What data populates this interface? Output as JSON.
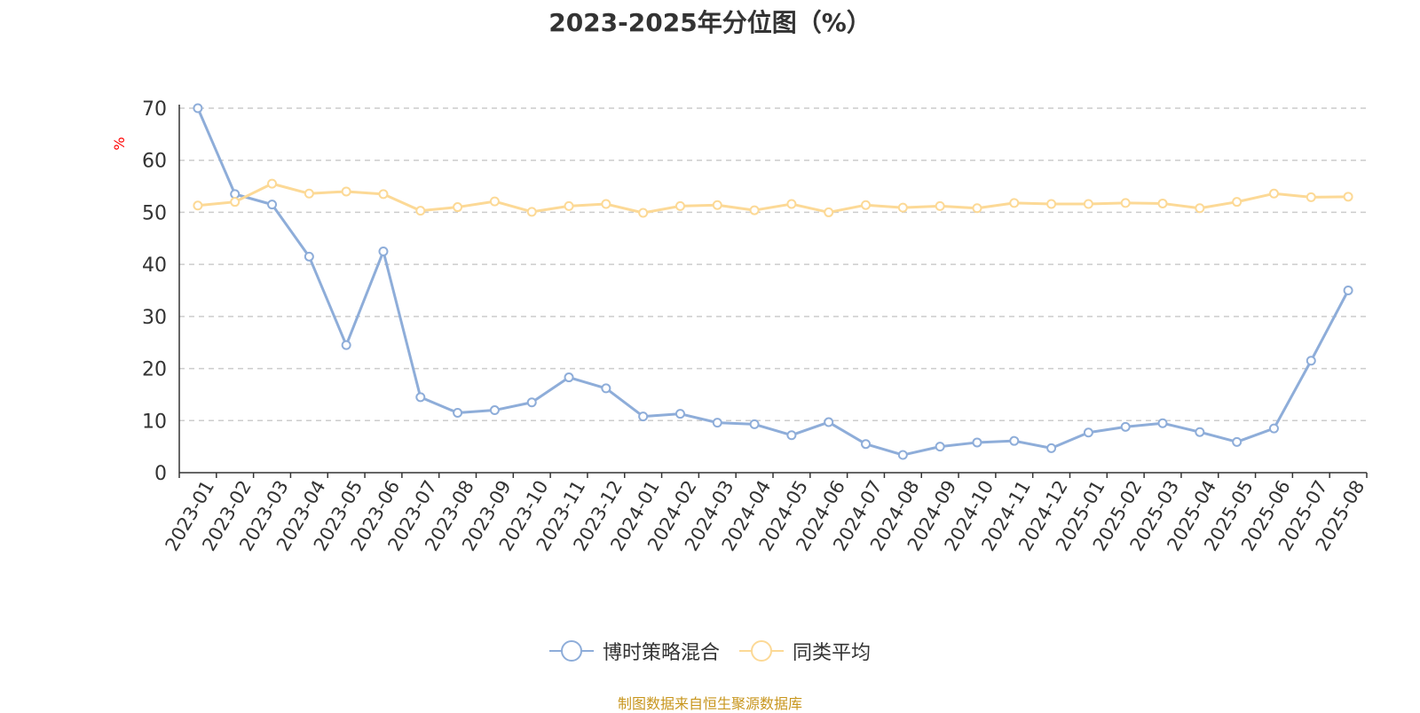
{
  "chart_data": {
    "type": "line",
    "title": "2023-2025年分位图（%）",
    "ylabel": "%",
    "xlabel": "",
    "ylim": [
      0,
      70
    ],
    "yticks": [
      0,
      10,
      20,
      30,
      40,
      50,
      60,
      70
    ],
    "grid": true,
    "legend_position": "bottom",
    "categories": [
      "2023-01",
      "2023-02",
      "2023-03",
      "2023-04",
      "2023-05",
      "2023-06",
      "2023-07",
      "2023-08",
      "2023-09",
      "2023-10",
      "2023-11",
      "2023-12",
      "2024-01",
      "2024-02",
      "2024-03",
      "2024-04",
      "2024-05",
      "2024-06",
      "2024-07",
      "2024-08",
      "2024-09",
      "2024-10",
      "2024-11",
      "2024-12",
      "2025-01",
      "2025-02",
      "2025-03",
      "2025-04",
      "2025-05",
      "2025-06",
      "2025-07",
      "2025-08"
    ],
    "series": [
      {
        "name": "博时策略混合",
        "color": "#8eadd9",
        "values": [
          70.0,
          53.5,
          51.5,
          41.5,
          24.5,
          42.5,
          14.5,
          11.5,
          12.0,
          13.5,
          18.3,
          16.2,
          10.8,
          11.3,
          9.6,
          9.3,
          7.2,
          9.7,
          5.5,
          3.4,
          5.0,
          5.8,
          6.1,
          4.7,
          7.7,
          8.8,
          9.5,
          7.8,
          5.9,
          8.5,
          21.5,
          35.0
        ]
      },
      {
        "name": "同类平均",
        "color": "#fcd996",
        "values": [
          51.3,
          52.0,
          55.5,
          53.6,
          54.0,
          53.5,
          50.3,
          51.0,
          52.1,
          50.1,
          51.2,
          51.6,
          49.9,
          51.2,
          51.4,
          50.4,
          51.6,
          50.0,
          51.4,
          50.9,
          51.2,
          50.8,
          51.8,
          51.6,
          51.6,
          51.8,
          51.7,
          50.8,
          52.0,
          53.6,
          52.9,
          53.0
        ]
      }
    ]
  },
  "source_note": "制图数据来自恒生聚源数据库"
}
